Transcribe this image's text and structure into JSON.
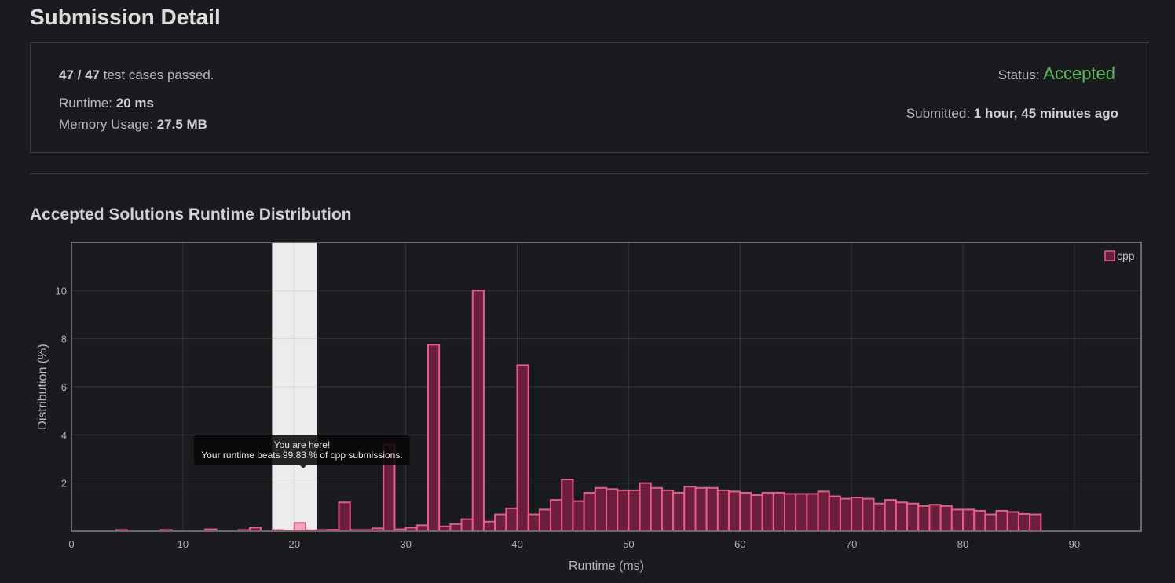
{
  "header": {
    "title": "Submission Detail"
  },
  "summary": {
    "passed_count": "47 / 47",
    "passed_suffix": " test cases passed.",
    "runtime_label": "Runtime: ",
    "runtime_value": "20 ms",
    "memory_label": "Memory Usage: ",
    "memory_value": "27.5 MB",
    "status_label": "Status: ",
    "status_value": "Accepted",
    "submitted_label": "Submitted: ",
    "submitted_value": "1 hour, 45 minutes ago"
  },
  "colors": {
    "accepted": "#5cb85c",
    "bar_fill": "#6b1f3d",
    "bar_stroke": "#e85a87",
    "highlight": "#ececec"
  },
  "tooltip": {
    "line1": "You are here!",
    "line2": "Your runtime beats 99.83 % of cpp submissions."
  },
  "chart_data": {
    "type": "bar",
    "title": "Accepted Solutions Runtime Distribution",
    "xlabel": "Runtime (ms)",
    "ylabel": "Distribution (%)",
    "xlim": [
      0,
      96
    ],
    "ylim": [
      0,
      12
    ],
    "x_ticks": [
      0,
      10,
      20,
      30,
      40,
      50,
      60,
      70,
      80,
      90
    ],
    "y_ticks": [
      2,
      4,
      6,
      8,
      10
    ],
    "grid": true,
    "legend": "top-right",
    "highlight_range": [
      18,
      22
    ],
    "series": [
      {
        "name": "cpp",
        "x": [
          4.5,
          8.5,
          12.5,
          15.5,
          16.5,
          18.5,
          19.5,
          20.5,
          21.5,
          22.5,
          23.5,
          24.5,
          25.5,
          26.5,
          27.5,
          28.5,
          29.5,
          30.5,
          31.5,
          32.5,
          33.5,
          34.5,
          35.5,
          36.5,
          37.5,
          38.5,
          39.5,
          40.5,
          41.5,
          42.5,
          43.5,
          44.5,
          45.5,
          46.5,
          47.5,
          48.5,
          49.5,
          50.5,
          51.5,
          52.5,
          53.5,
          54.5,
          55.5,
          56.5,
          57.5,
          58.5,
          59.5,
          60.5,
          61.5,
          62.5,
          63.5,
          64.5,
          65.5,
          66.5,
          67.5,
          68.5,
          69.5,
          70.5,
          71.5,
          72.5,
          73.5,
          74.5,
          75.5,
          76.5,
          77.5,
          78.5,
          79.5,
          80.5,
          81.5,
          82.5,
          83.5,
          84.5,
          85.5,
          86.5
        ],
        "values": [
          0.05,
          0.05,
          0.08,
          0.05,
          0.15,
          0.05,
          0.03,
          0.35,
          0.04,
          0.05,
          0.06,
          1.2,
          0.05,
          0.05,
          0.12,
          3.6,
          0.08,
          0.15,
          0.25,
          7.75,
          0.2,
          0.3,
          0.5,
          10.0,
          0.4,
          0.7,
          0.95,
          6.9,
          0.7,
          0.9,
          1.3,
          2.15,
          1.25,
          1.6,
          1.8,
          1.75,
          1.7,
          1.7,
          2.0,
          1.8,
          1.7,
          1.6,
          1.85,
          1.8,
          1.8,
          1.7,
          1.65,
          1.6,
          1.5,
          1.6,
          1.6,
          1.55,
          1.55,
          1.55,
          1.65,
          1.45,
          1.35,
          1.4,
          1.35,
          1.15,
          1.3,
          1.2,
          1.15,
          1.05,
          1.1,
          1.05,
          0.9,
          0.9,
          0.85,
          0.7,
          0.85,
          0.8,
          0.72,
          0.7
        ]
      }
    ]
  }
}
